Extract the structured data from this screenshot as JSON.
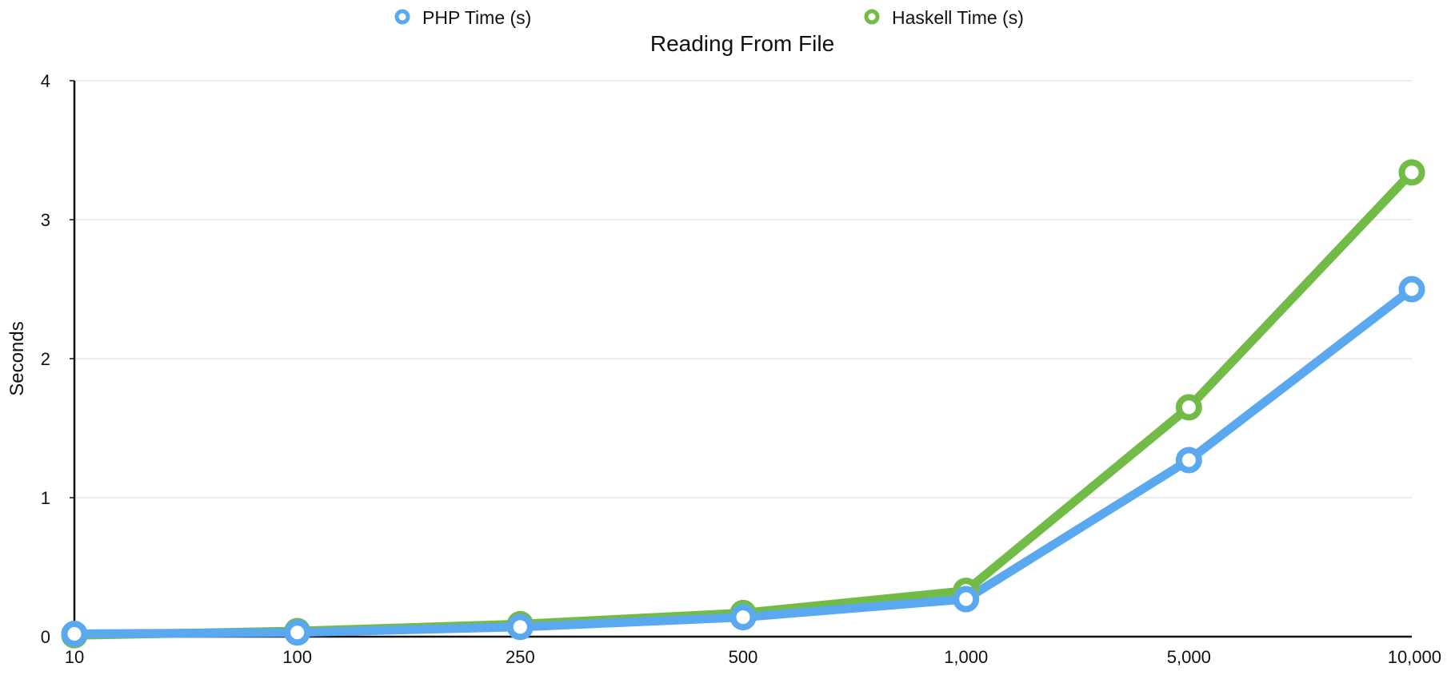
{
  "chart_data": {
    "type": "line",
    "title": "Reading From File",
    "xlabel": "",
    "ylabel": "Seconds",
    "categories": [
      "10",
      "100",
      "250",
      "500",
      "1,000",
      "5,000",
      "10,000"
    ],
    "ylim": [
      0,
      4
    ],
    "yticks": [
      "0",
      "1",
      "2",
      "3",
      "4"
    ],
    "grid": true,
    "legend_position": "top",
    "series": [
      {
        "name": "PHP Time (s)",
        "color": "#5aa9f0",
        "values": [
          0.02,
          0.03,
          0.07,
          0.14,
          0.27,
          1.27,
          2.5
        ]
      },
      {
        "name": "Haskell Time (s)",
        "color": "#72bb47",
        "values": [
          0.01,
          0.04,
          0.09,
          0.17,
          0.33,
          1.65,
          3.34
        ]
      }
    ]
  }
}
